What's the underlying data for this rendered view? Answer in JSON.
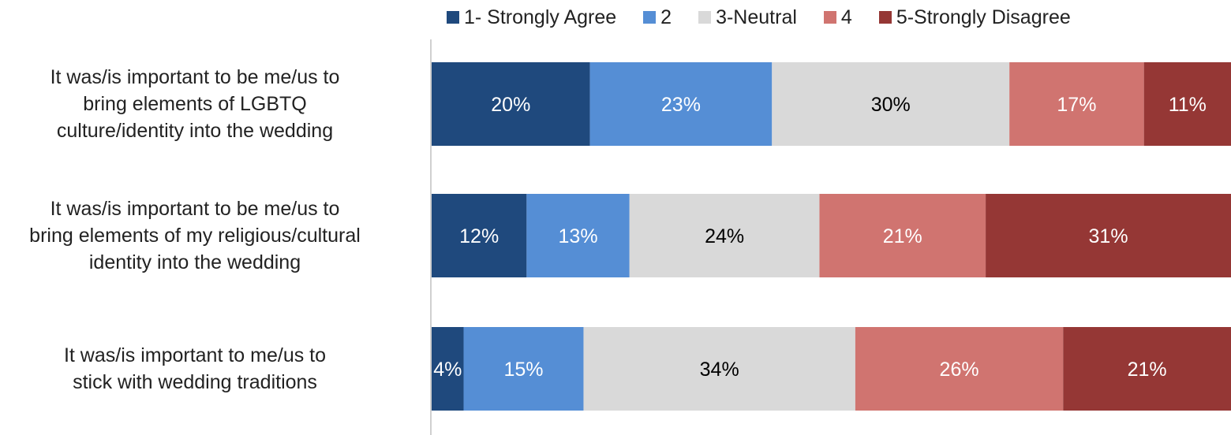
{
  "chart_data": {
    "type": "bar",
    "orientation": "horizontal",
    "stacked": true,
    "percent_stacked": true,
    "categories": [
      "It was/is important to be me/us to bring elements of LGBTQ culture/identity into the wedding",
      "It was/is important to be me/us to bring elements of my religious/cultural identity into the wedding",
      "It was/is important to me/us to stick with wedding traditions"
    ],
    "category_lines": [
      [
        "It was/is important to be me/us to",
        "bring elements of LGBTQ",
        "culture/identity into the wedding"
      ],
      [
        "It was/is important to be me/us to",
        "bring elements of my religious/cultural",
        "identity into the wedding"
      ],
      [
        "It was/is important to me/us to",
        "stick with wedding traditions"
      ]
    ],
    "series": [
      {
        "name": "1- Strongly Agree",
        "color": "#1f497d",
        "label_color": "#ffffff",
        "values": [
          20,
          12,
          4
        ],
        "labels": [
          "20%",
          "12%",
          "4%"
        ]
      },
      {
        "name": "2",
        "color": "#558ed5",
        "label_color": "#ffffff",
        "values": [
          23,
          13,
          15
        ],
        "labels": [
          "23%",
          "13%",
          "15%"
        ]
      },
      {
        "name": "3-Neutral",
        "color": "#d9d9d9",
        "label_color": "#000000",
        "values": [
          30,
          24,
          34
        ],
        "labels": [
          "30%",
          "24%",
          "34%"
        ]
      },
      {
        "name": "4",
        "color": "#d07470",
        "label_color": "#ffffff",
        "values": [
          17,
          21,
          26
        ],
        "labels": [
          "17%",
          "21%",
          "26%"
        ]
      },
      {
        "name": "5-Strongly Disagree",
        "color": "#953735",
        "label_color": "#ffffff",
        "values": [
          11,
          31,
          21
        ],
        "labels": [
          "11%",
          "31%",
          "21%"
        ]
      }
    ],
    "legend_position": "top",
    "grid": false
  }
}
